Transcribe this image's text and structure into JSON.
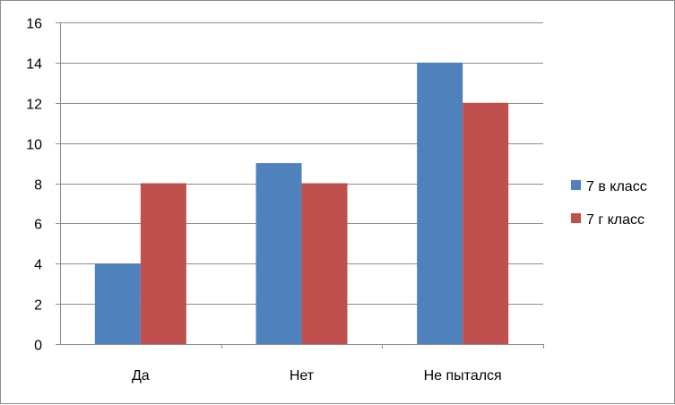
{
  "chart_data": {
    "type": "bar",
    "title": "",
    "xlabel": "",
    "ylabel": "",
    "categories": [
      "Да",
      "Нет",
      "Не пытался"
    ],
    "series": [
      {
        "name": "7 в класс",
        "values": [
          4,
          9,
          14
        ],
        "color": "#4f81bd"
      },
      {
        "name": "7 г класс",
        "values": [
          8,
          8,
          12
        ],
        "color": "#c0504d"
      }
    ],
    "ylim": [
      0,
      16
    ],
    "yticks": [
      "0",
      "2",
      "4",
      "6",
      "8",
      "10",
      "12",
      "14",
      "16"
    ],
    "grid": true,
    "legend_position": "right"
  }
}
